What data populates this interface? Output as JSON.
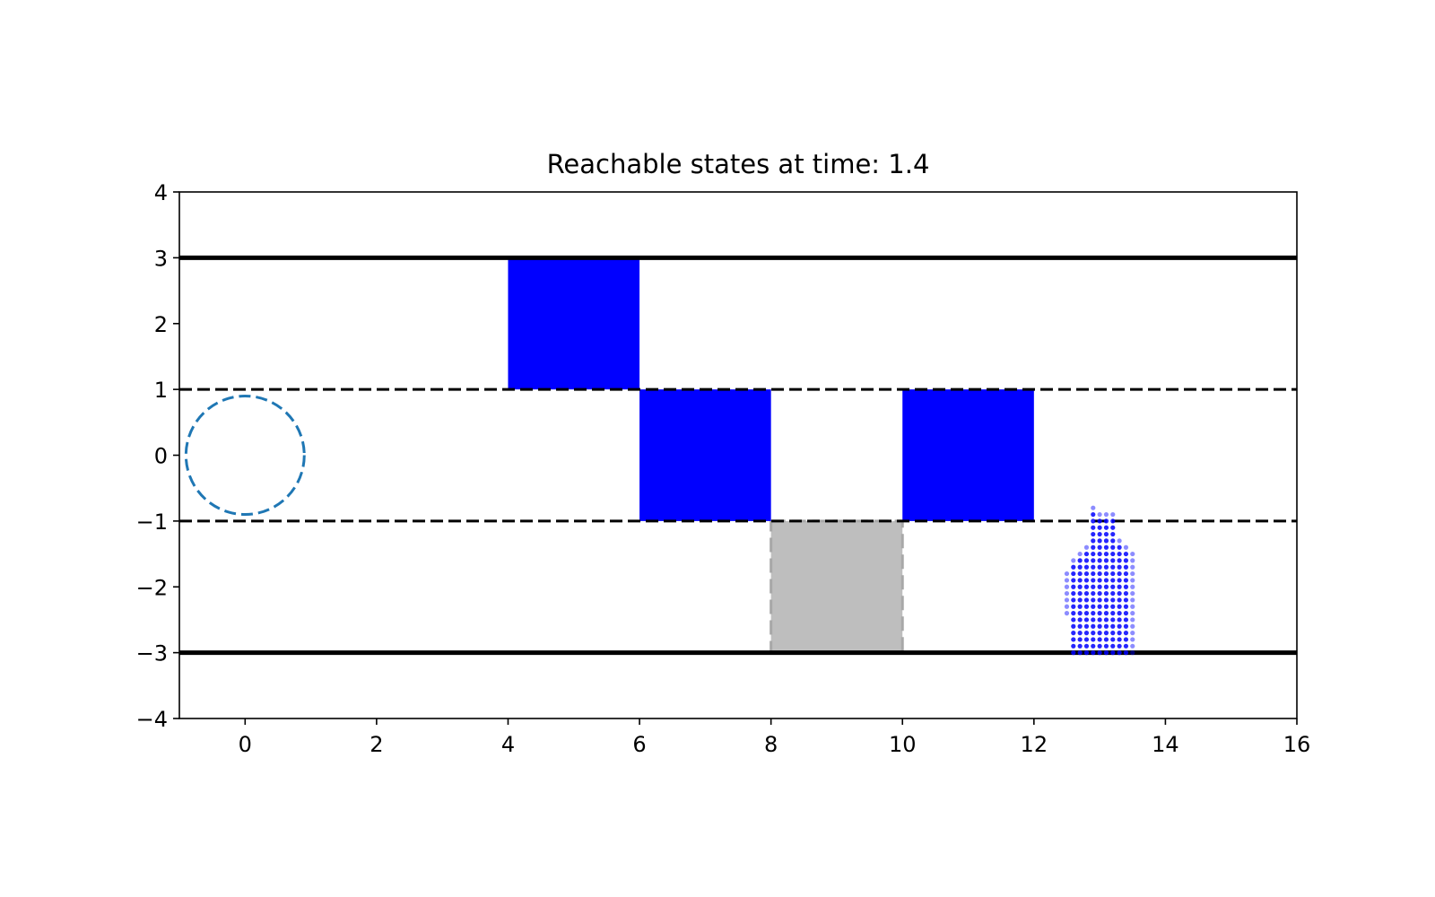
{
  "chart_data": {
    "type": "scatter",
    "title": "Reachable states at time: 1.4",
    "xlabel": "",
    "ylabel": "",
    "xlim": [
      -1,
      16
    ],
    "ylim": [
      -4,
      4
    ],
    "xticks": [
      0,
      2,
      4,
      6,
      8,
      10,
      12,
      14,
      16
    ],
    "yticks": [
      4,
      3,
      2,
      1,
      0,
      -1,
      -2,
      -3,
      -4
    ],
    "xtick_labels": [
      "0",
      "2",
      "4",
      "6",
      "8",
      "10",
      "12",
      "14",
      "16"
    ],
    "ytick_labels": [
      "4",
      "3",
      "2",
      "1",
      "0",
      "−1",
      "−2",
      "−3",
      "−4"
    ],
    "grid": false,
    "road_boundaries": [
      3,
      -3
    ],
    "lane_dividers": [
      1,
      -1
    ],
    "ego_circle": {
      "cx": 0,
      "cy": 0,
      "r": 0.9,
      "color": "#1f77b4"
    },
    "obstacles": [
      {
        "x0": 4,
        "x1": 6,
        "y0": 1,
        "y1": 3,
        "color": "#0000ff"
      },
      {
        "x0": 6,
        "x1": 8,
        "y0": -1,
        "y1": 1,
        "color": "#0000ff"
      },
      {
        "x0": 10,
        "x1": 12,
        "y0": -1,
        "y1": 1,
        "color": "#0000ff"
      }
    ],
    "shaded_region": {
      "x0": 8,
      "x1": 10,
      "y0": -3,
      "y1": -1,
      "color": "#bebebe"
    },
    "reachable_set": {
      "x_min": 12.5,
      "x_max": 13.5,
      "dx": 0.1,
      "y_min": -3.0,
      "dy": 0.1,
      "color": "#0000ff",
      "columns": [
        {
          "x": 12.5,
          "y_top": -1.8,
          "y_bottom": -2.4
        },
        {
          "x": 12.6,
          "y_top": -1.6,
          "y_bottom": -3.0
        },
        {
          "x": 12.7,
          "y_top": -1.5,
          "y_bottom": -3.0
        },
        {
          "x": 12.8,
          "y_top": -1.4,
          "y_bottom": -3.0
        },
        {
          "x": 12.9,
          "y_top": -0.8,
          "y_bottom": -3.0
        },
        {
          "x": 13.0,
          "y_top": -0.9,
          "y_bottom": -3.0
        },
        {
          "x": 13.1,
          "y_top": -0.9,
          "y_bottom": -3.0
        },
        {
          "x": 13.2,
          "y_top": -0.9,
          "y_bottom": -3.0
        },
        {
          "x": 13.3,
          "y_top": -1.3,
          "y_bottom": -3.0
        },
        {
          "x": 13.4,
          "y_top": -1.4,
          "y_bottom": -3.0
        },
        {
          "x": 13.5,
          "y_top": -1.5,
          "y_bottom": -3.0
        }
      ]
    }
  }
}
